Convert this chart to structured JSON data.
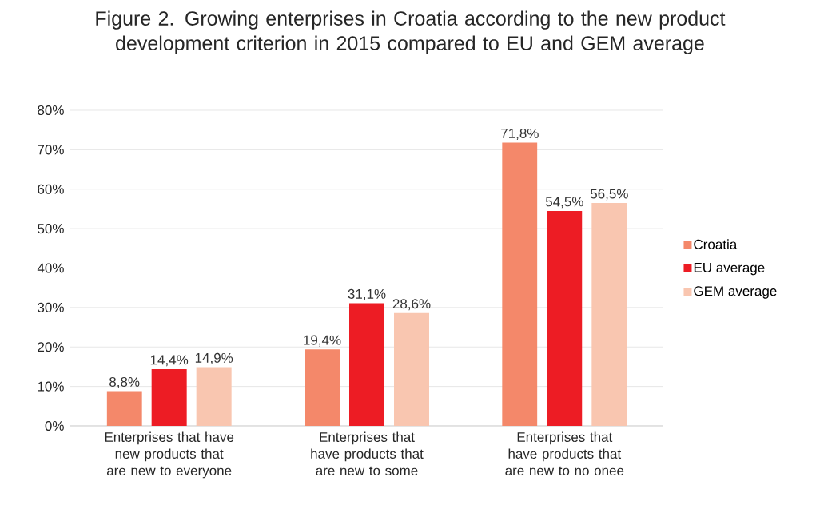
{
  "chart_data": {
    "type": "bar",
    "title": "Figure 2. Growing enterprises in Croatia according to the new product development criterion in 2015 compared to EU and GEM average",
    "categories": [
      "Enterprises that have new products that are new to everyone",
      "Enterprises that have products that are new to some",
      "Enterprises that have products that are new to no onee"
    ],
    "series": [
      {
        "name": "Croatia",
        "color": "#f4886a",
        "values": [
          8.8,
          19.4,
          71.8
        ],
        "value_labels": [
          "8,8%",
          "19,4%",
          "71,8%"
        ]
      },
      {
        "name": "EU average",
        "color": "#ed1c24",
        "values": [
          14.4,
          31.1,
          54.5
        ],
        "value_labels": [
          "14,4%",
          "31,1%",
          "54,5%"
        ]
      },
      {
        "name": "GEM average",
        "color": "#f9c6b0",
        "values": [
          14.9,
          28.6,
          56.5
        ],
        "value_labels": [
          "14,9%",
          "28,6%",
          "56,5%"
        ]
      }
    ],
    "ylim": [
      0,
      80
    ],
    "yticks": [
      {
        "value": 0,
        "label": "0%"
      },
      {
        "value": 10,
        "label": "10%"
      },
      {
        "value": 20,
        "label": "20%"
      },
      {
        "value": 30,
        "label": "30%"
      },
      {
        "value": 40,
        "label": "40%"
      },
      {
        "value": 50,
        "label": "50%"
      },
      {
        "value": 60,
        "label": "60%"
      },
      {
        "value": 70,
        "label": "70%"
      },
      {
        "value": 80,
        "label": "80%"
      }
    ],
    "grid": "y",
    "legend": "right"
  }
}
